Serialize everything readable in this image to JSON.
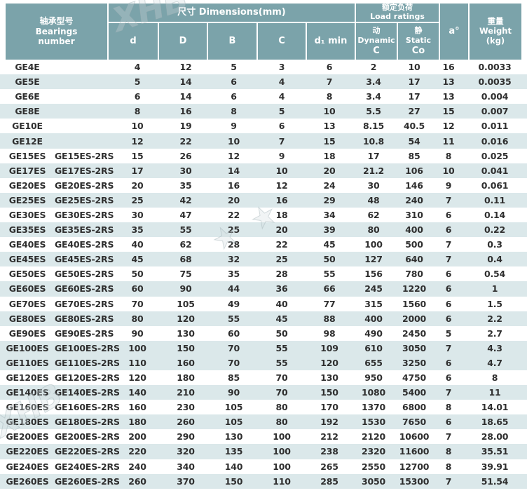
{
  "table": {
    "header": {
      "bearings_zh": "轴承型号",
      "bearings_en1": "Bearings",
      "bearings_en2": "number",
      "dimensions": "尺寸  Dimensions(mm)",
      "load_zh": "额定负荷",
      "load_en": "Load ratings",
      "col_d": "d",
      "col_D": "D",
      "col_B": "B",
      "col_C": "C",
      "col_d1min": "d₁ min",
      "dynamic_zh": "动",
      "dynamic_en": "Dynamic",
      "dynamic_sym": "C",
      "static_zh": "静",
      "static_en": "Static",
      "static_sym": "Co",
      "a_label": "a°",
      "weight_zh": "重量",
      "weight_en": "Weight",
      "weight_unit": "(kg)"
    },
    "rows": [
      {
        "name": "GE4E",
        "name2": "",
        "d": "4",
        "D": "12",
        "B": "5",
        "C": "3",
        "d1": "6",
        "cdyn": "2",
        "c0": "10",
        "a": "16",
        "wt": "0.0033",
        "shaded": false
      },
      {
        "name": "GE5E",
        "name2": "",
        "d": "5",
        "D": "14",
        "B": "6",
        "C": "4",
        "d1": "7",
        "cdyn": "3.4",
        "c0": "17",
        "a": "13",
        "wt": "0.0035",
        "shaded": true
      },
      {
        "name": "GE6E",
        "name2": "",
        "d": "6",
        "D": "14",
        "B": "6",
        "C": "4",
        "d1": "8",
        "cdyn": "3.4",
        "c0": "17",
        "a": "13",
        "wt": "0.004",
        "shaded": false
      },
      {
        "name": "GE8E",
        "name2": "",
        "d": "8",
        "D": "16",
        "B": "8",
        "C": "5",
        "d1": "10",
        "cdyn": "5.5",
        "c0": "27",
        "a": "15",
        "wt": "0.007",
        "shaded": true
      },
      {
        "name": "GE10E",
        "name2": "",
        "d": "10",
        "D": "19",
        "B": "9",
        "C": "6",
        "d1": "13",
        "cdyn": "8.15",
        "c0": "40.5",
        "a": "12",
        "wt": "0.011",
        "shaded": false
      },
      {
        "name": "GE12E",
        "name2": "",
        "d": "12",
        "D": "22",
        "B": "10",
        "C": "7",
        "d1": "15",
        "cdyn": "10.8",
        "c0": "54",
        "a": "11",
        "wt": "0.016",
        "shaded": true
      },
      {
        "name": "GE15ES",
        "name2": "GE15ES-2RS",
        "d": "15",
        "D": "26",
        "B": "12",
        "C": "9",
        "d1": "18",
        "cdyn": "17",
        "c0": "85",
        "a": "8",
        "wt": "0.025",
        "shaded": false
      },
      {
        "name": "GE17ES",
        "name2": "GE17ES-2RS",
        "d": "17",
        "D": "30",
        "B": "14",
        "C": "10",
        "d1": "20",
        "cdyn": "21.2",
        "c0": "106",
        "a": "10",
        "wt": "0.041",
        "shaded": true
      },
      {
        "name": "GE20ES",
        "name2": "GE20ES-2RS",
        "d": "20",
        "D": "35",
        "B": "16",
        "C": "12",
        "d1": "24",
        "cdyn": "30",
        "c0": "146",
        "a": "9",
        "wt": "0.061",
        "shaded": false
      },
      {
        "name": "GE25ES",
        "name2": "GE25ES-2RS",
        "d": "25",
        "D": "42",
        "B": "20",
        "C": "16",
        "d1": "29",
        "cdyn": "48",
        "c0": "240",
        "a": "7",
        "wt": "0.11",
        "shaded": true
      },
      {
        "name": "GE30ES",
        "name2": "GE30ES-2RS",
        "d": "30",
        "D": "47",
        "B": "22",
        "C": "18",
        "d1": "34",
        "cdyn": "62",
        "c0": "310",
        "a": "6",
        "wt": "0.14",
        "shaded": false
      },
      {
        "name": "GE35ES",
        "name2": "GE35ES-2RS",
        "d": "35",
        "D": "55",
        "B": "25",
        "C": "20",
        "d1": "39",
        "cdyn": "80",
        "c0": "400",
        "a": "6",
        "wt": "0.22",
        "shaded": true
      },
      {
        "name": "GE40ES",
        "name2": "GE40ES-2RS",
        "d": "40",
        "D": "62",
        "B": "28",
        "C": "22",
        "d1": "45",
        "cdyn": "100",
        "c0": "500",
        "a": "7",
        "wt": "0.3",
        "shaded": false
      },
      {
        "name": "GE45ES",
        "name2": "GE45ES-2RS",
        "d": "45",
        "D": "68",
        "B": "32",
        "C": "25",
        "d1": "50",
        "cdyn": "127",
        "c0": "640",
        "a": "7",
        "wt": "0.4",
        "shaded": true
      },
      {
        "name": "GE50ES",
        "name2": "GE50ES-2RS",
        "d": "50",
        "D": "75",
        "B": "35",
        "C": "28",
        "d1": "55",
        "cdyn": "156",
        "c0": "780",
        "a": "6",
        "wt": "0.54",
        "shaded": false
      },
      {
        "name": "GE60ES",
        "name2": "GE60ES-2RS",
        "d": "60",
        "D": "90",
        "B": "44",
        "C": "36",
        "d1": "66",
        "cdyn": "245",
        "c0": "1220",
        "a": "6",
        "wt": "1",
        "shaded": true
      },
      {
        "name": "GE70ES",
        "name2": "GE70ES-2RS",
        "d": "70",
        "D": "105",
        "B": "49",
        "C": "40",
        "d1": "77",
        "cdyn": "315",
        "c0": "1560",
        "a": "6",
        "wt": "1.5",
        "shaded": false
      },
      {
        "name": "GE80ES",
        "name2": "GE80ES-2RS",
        "d": "80",
        "D": "120",
        "B": "55",
        "C": "45",
        "d1": "88",
        "cdyn": "400",
        "c0": "2000",
        "a": "6",
        "wt": "2.2",
        "shaded": true
      },
      {
        "name": "GE90ES",
        "name2": "GE90ES-2RS",
        "d": "90",
        "D": "130",
        "B": "60",
        "C": "50",
        "d1": "98",
        "cdyn": "490",
        "c0": "2450",
        "a": "5",
        "wt": "2.7",
        "shaded": false
      },
      {
        "name": "GE100ES",
        "name2": "GE100ES-2RS",
        "d": "100",
        "D": "150",
        "B": "70",
        "C": "55",
        "d1": "109",
        "cdyn": "610",
        "c0": "3050",
        "a": "7",
        "wt": "4.3",
        "shaded": true
      },
      {
        "name": "GE110ES",
        "name2": "GE110ES-2RS",
        "d": "110",
        "D": "160",
        "B": "70",
        "C": "55",
        "d1": "120",
        "cdyn": "655",
        "c0": "3250",
        "a": "6",
        "wt": "4.7",
        "shaded": true
      },
      {
        "name": "GE120ES",
        "name2": "GE120ES-2RS",
        "d": "120",
        "D": "180",
        "B": "85",
        "C": "70",
        "d1": "130",
        "cdyn": "950",
        "c0": "4750",
        "a": "6",
        "wt": "8",
        "shaded": false
      },
      {
        "name": "GE140ES",
        "name2": "GE140ES-2RS",
        "d": "140",
        "D": "210",
        "B": "90",
        "C": "70",
        "d1": "150",
        "cdyn": "1080",
        "c0": "5400",
        "a": "7",
        "wt": "11",
        "shaded": true
      },
      {
        "name": "GE160ES",
        "name2": "GE160ES-2RS",
        "d": "160",
        "D": "230",
        "B": "105",
        "C": "80",
        "d1": "170",
        "cdyn": "1370",
        "c0": "6800",
        "a": "8",
        "wt": "14.01",
        "shaded": false
      },
      {
        "name": "GE180ES",
        "name2": "GE180ES-2RS",
        "d": "180",
        "D": "260",
        "B": "105",
        "C": "80",
        "d1": "192",
        "cdyn": "1530",
        "c0": "7650",
        "a": "6",
        "wt": "18.65",
        "shaded": true
      },
      {
        "name": "GE200ES",
        "name2": "GE200ES-2RS",
        "d": "200",
        "D": "290",
        "B": "130",
        "C": "100",
        "d1": "212",
        "cdyn": "2120",
        "c0": "10600",
        "a": "7",
        "wt": "28.00",
        "shaded": false
      },
      {
        "name": "GE220ES",
        "name2": "GE220ES-2RS",
        "d": "220",
        "D": "320",
        "B": "135",
        "C": "100",
        "d1": "238",
        "cdyn": "2320",
        "c0": "11600",
        "a": "8",
        "wt": "35.51",
        "shaded": true
      },
      {
        "name": "GE240ES",
        "name2": "GE240ES-2RS",
        "d": "240",
        "D": "340",
        "B": "140",
        "C": "100",
        "d1": "265",
        "cdyn": "2550",
        "c0": "12700",
        "a": "8",
        "wt": "39.91",
        "shaded": false
      },
      {
        "name": "GE260ES",
        "name2": "GE260ES-2RS",
        "d": "260",
        "D": "370",
        "B": "150",
        "C": "110",
        "d1": "285",
        "cdyn": "3050",
        "c0": "15300",
        "a": "7",
        "wt": "51.54",
        "shaded": true
      }
    ]
  },
  "colors": {
    "header_teal": "#7ba3aa",
    "row_stripe": "#dbe8ea",
    "text": "#2f2f2f"
  },
  "watermark": {
    "top": "XHB",
    "center": "★ ★",
    "bottom_left": "XHB"
  }
}
